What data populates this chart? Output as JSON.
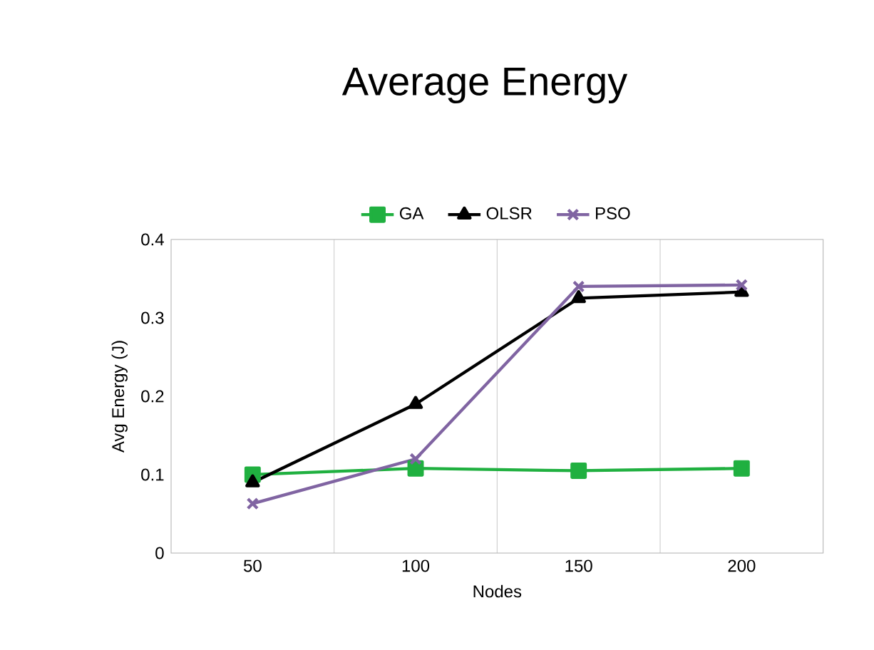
{
  "chart_data": {
    "type": "line",
    "title": "Average Energy",
    "xlabel": "Nodes",
    "ylabel": "Avg Energy (J)",
    "categories": [
      "50",
      "100",
      "150",
      "200"
    ],
    "series": [
      {
        "name": "GA",
        "color": "#20b040",
        "marker": "square",
        "values": [
          0.1,
          0.108,
          0.105,
          0.108
        ]
      },
      {
        "name": "OLSR",
        "color": "#000000",
        "marker": "triangle",
        "values": [
          0.09,
          0.19,
          0.325,
          0.333
        ]
      },
      {
        "name": "PSO",
        "color": "#8064a2",
        "marker": "cross",
        "values": [
          0.063,
          0.12,
          0.34,
          0.342
        ]
      }
    ],
    "ylim": [
      0,
      0.4
    ],
    "yticks": [
      0,
      0.1,
      0.2,
      0.3,
      0.4
    ],
    "grid": "x",
    "legend": "top",
    "line_style": "solid"
  }
}
